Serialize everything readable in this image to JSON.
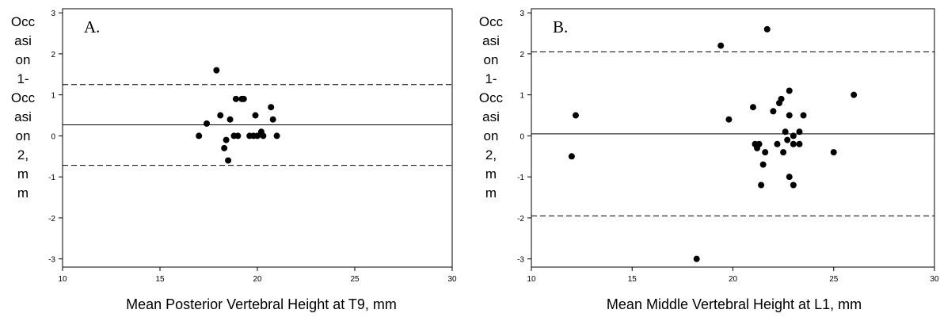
{
  "chart_data": [
    {
      "type": "scatter",
      "panel_label": "A.",
      "ylabel_lines": [
        "Occ",
        "asi",
        "on",
        "1-",
        "Occ",
        "asi",
        "on",
        "2,",
        "m",
        "m"
      ],
      "xlabel": "Mean Posterior Vertebral Height at T9, mm",
      "xlim": [
        10,
        30
      ],
      "ylim": [
        -3.2,
        3.1
      ],
      "x_ticks": [
        10,
        15,
        20,
        25,
        30
      ],
      "y_ticks": [
        -3,
        -2,
        -1,
        0,
        1,
        2,
        3
      ],
      "y_tick_labels": [
        "-3",
        "-2",
        "-1",
        "0",
        "1",
        "2",
        "3"
      ],
      "mean_line": 0.27,
      "limit_lines": [
        1.25,
        -0.72
      ],
      "points": [
        {
          "x": 17.0,
          "y": 0.0
        },
        {
          "x": 17.4,
          "y": 0.3
        },
        {
          "x": 17.9,
          "y": 1.6
        },
        {
          "x": 18.1,
          "y": 0.5
        },
        {
          "x": 18.3,
          "y": -0.3
        },
        {
          "x": 18.4,
          "y": -0.1
        },
        {
          "x": 18.5,
          "y": -0.6
        },
        {
          "x": 18.6,
          "y": 0.4
        },
        {
          "x": 18.8,
          "y": 0.0
        },
        {
          "x": 18.9,
          "y": 0.9
        },
        {
          "x": 19.0,
          "y": 0.0
        },
        {
          "x": 19.2,
          "y": 0.9
        },
        {
          "x": 19.3,
          "y": 0.9
        },
        {
          "x": 19.6,
          "y": 0.0
        },
        {
          "x": 19.8,
          "y": 0.0
        },
        {
          "x": 19.9,
          "y": 0.5
        },
        {
          "x": 20.0,
          "y": 0.0
        },
        {
          "x": 20.2,
          "y": 0.1
        },
        {
          "x": 20.3,
          "y": 0.0
        },
        {
          "x": 20.7,
          "y": 0.7
        },
        {
          "x": 20.8,
          "y": 0.4
        },
        {
          "x": 21.0,
          "y": 0.0
        }
      ]
    },
    {
      "type": "scatter",
      "panel_label": "B.",
      "ylabel_lines": [
        "Occ",
        "asi",
        "on",
        "1-",
        "Occ",
        "asi",
        "on",
        "2,",
        "m",
        "m"
      ],
      "xlabel": "Mean Middle Vertebral Height at L1, mm",
      "xlim": [
        10,
        30
      ],
      "ylim": [
        -3.2,
        3.1
      ],
      "x_ticks": [
        10,
        15,
        20,
        25,
        30
      ],
      "y_ticks": [
        -3,
        -2,
        -1,
        0,
        1,
        2,
        3
      ],
      "y_tick_labels": [
        "-3",
        "-2",
        "-1",
        "0",
        "1",
        "2",
        "3"
      ],
      "mean_line": 0.05,
      "limit_lines": [
        2.05,
        -1.95
      ],
      "points": [
        {
          "x": 12.0,
          "y": -0.5
        },
        {
          "x": 12.2,
          "y": 0.5
        },
        {
          "x": 18.2,
          "y": -3.0
        },
        {
          "x": 19.4,
          "y": 2.2
        },
        {
          "x": 19.8,
          "y": 0.4
        },
        {
          "x": 21.0,
          "y": 0.7
        },
        {
          "x": 21.1,
          "y": -0.2
        },
        {
          "x": 21.2,
          "y": -0.3
        },
        {
          "x": 21.3,
          "y": -0.2
        },
        {
          "x": 21.4,
          "y": -1.2
        },
        {
          "x": 21.5,
          "y": -0.7
        },
        {
          "x": 21.6,
          "y": -0.4
        },
        {
          "x": 21.7,
          "y": 2.6
        },
        {
          "x": 22.0,
          "y": 0.6
        },
        {
          "x": 22.2,
          "y": -0.2
        },
        {
          "x": 22.3,
          "y": 0.8
        },
        {
          "x": 22.4,
          "y": 0.9
        },
        {
          "x": 22.5,
          "y": -0.4
        },
        {
          "x": 22.6,
          "y": 0.1
        },
        {
          "x": 22.7,
          "y": -0.1
        },
        {
          "x": 22.8,
          "y": -1.0
        },
        {
          "x": 22.8,
          "y": 1.1
        },
        {
          "x": 22.8,
          "y": 0.5
        },
        {
          "x": 23.0,
          "y": -0.2
        },
        {
          "x": 23.0,
          "y": 0.0
        },
        {
          "x": 23.0,
          "y": -1.2
        },
        {
          "x": 23.3,
          "y": -0.2
        },
        {
          "x": 23.3,
          "y": 0.1
        },
        {
          "x": 23.5,
          "y": 0.5
        },
        {
          "x": 25.0,
          "y": -0.4
        },
        {
          "x": 26.0,
          "y": 1.0
        }
      ]
    }
  ]
}
